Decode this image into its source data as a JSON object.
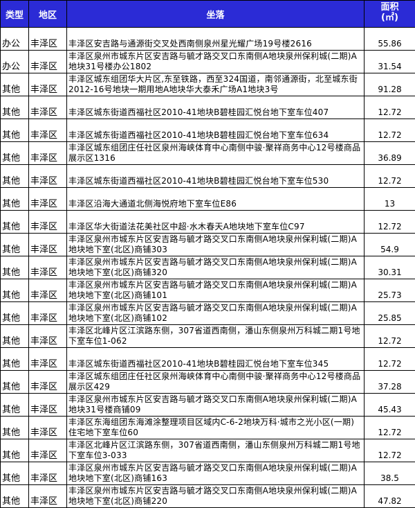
{
  "header": {
    "type": "类型",
    "region": "地区",
    "location": "坐落",
    "area": "面积",
    "area_unit": "(㎡)"
  },
  "colors": {
    "header_bg": "#2b2bd6",
    "header_text": "#ffffff"
  },
  "rows": [
    {
      "type": "办公",
      "region": "丰泽区",
      "location": "丰泽区安吉路与通源街交叉处西南侧泉州星光耀广场19号楼2616",
      "area": "55.86"
    },
    {
      "type": "办公",
      "region": "丰泽区",
      "location": "丰泽区泉州市城东片区安吉路与毓才路交叉口东南侧A地块泉州保利城(二期)A地块31号楼办公1802",
      "area": "31.54"
    },
    {
      "type": "其他",
      "region": "丰泽区",
      "location": "丰泽区城东组团华大片区,东至铁路，西至324国道，南邻通源街，北至城东街2012-16号地块一期用地A地块华大泰禾广场A1地块3号",
      "area": "91.28"
    },
    {
      "type": "其他",
      "region": "丰泽区",
      "location": "丰泽区城东街道西福社区2010-41地块B碧桂园汇悦台地下室车位407",
      "area": "12.72"
    },
    {
      "type": "其他",
      "region": "丰泽区",
      "location": "丰泽区城东街道西福社区2010-41地块B碧桂园汇悦台地下室车位634",
      "area": "12.72"
    },
    {
      "type": "其他",
      "region": "丰泽区",
      "location": "丰泽区城东组团庄任社区泉州海峡体育中心南侧中骏·聚祥商务中心12号楼商品展示区1316",
      "area": "36.89"
    },
    {
      "type": "其他",
      "region": "丰泽区",
      "location": "丰泽区城东街道西福社区2010-41地块B碧桂园汇悦台地下室车位530",
      "area": "12.72"
    },
    {
      "type": "其他",
      "region": "丰泽区",
      "location": "丰泽区沿海大通道北侧海悦府地下室车位E86",
      "area": "13"
    },
    {
      "type": "其他",
      "region": "丰泽区",
      "location": "丰泽区华大街道法花美社区中超·水木春天A地块地下室车位C97",
      "area": "12.72"
    },
    {
      "type": "其他",
      "region": "丰泽区",
      "location": "丰泽区泉州市城东片区安吉路与毓才路交叉口东南侧A地块泉州保利城(二期)A地块地下室(北区)商铺303",
      "area": "54.9"
    },
    {
      "type": "其他",
      "region": "丰泽区",
      "location": "丰泽区泉州市城东片区安吉路与毓才路交叉口东南侧A地块泉州保利城(二期)A地块地下室(北区)商铺320",
      "area": "30.31"
    },
    {
      "type": "其他",
      "region": "丰泽区",
      "location": "丰泽区泉州市城东片区安吉路与毓才路交叉口东南侧A地块泉州保利城(二期)A地块地下室(北区)商铺101",
      "area": "25.73"
    },
    {
      "type": "其他",
      "region": "丰泽区",
      "location": "丰泽区泉州市城东片区安吉路与毓才路交叉口东南侧A地块泉州保利城(二期)A地块地下室(北区)商铺102",
      "area": "25.85"
    },
    {
      "type": "其他",
      "region": "丰泽区",
      "location": "丰泽区北峰片区江滨路东侧，307省道西南侧，潘山东侧泉州万科城二期1号地下室车位1-062",
      "area": "12.72"
    },
    {
      "type": "其他",
      "region": "丰泽区",
      "location": "丰泽区城东街道西福社区2010-41地块B碧桂园汇悦台地下室车位345",
      "area": "12.72"
    },
    {
      "type": "其他",
      "region": "丰泽区",
      "location": "丰泽区城东组团庄任社区泉州海峡体育中心南侧中骏·聚祥商务中心12号楼商品展示区429",
      "area": "37.28"
    },
    {
      "type": "其他",
      "region": "丰泽区",
      "location": "丰泽区泉州市城东片区安吉路与毓才路交叉口东南侧A地块泉州保利城(二期)A地块31号楼商铺09",
      "area": "45.43"
    },
    {
      "type": "其他",
      "region": "丰泽区",
      "location": "丰泽区东海组团东海滩涂整理项目区域内C-6-2地块万科·城市之光小区(一期)住宅地下室车位60",
      "area": "12.72"
    },
    {
      "type": "其他",
      "region": "丰泽区",
      "location": "丰泽区北峰片区江滨路东侧，307省道西南侧，潘山东侧泉州万科城二期1号地下室车位3-033",
      "area": "12.72"
    },
    {
      "type": "其他",
      "region": "丰泽区",
      "location": "丰泽区泉州市城东片区安吉路与毓才路交叉口东南侧A地块泉州保利城(二期)A地块地下室(北区)商铺163",
      "area": "38.5"
    },
    {
      "type": "其他",
      "region": "丰泽区",
      "location": "丰泽区泉州市城东片区安吉路与毓才路交叉口东南侧A地块泉州保利城(二期)A地块地下室(北区)商铺220",
      "area": "47.82"
    }
  ]
}
